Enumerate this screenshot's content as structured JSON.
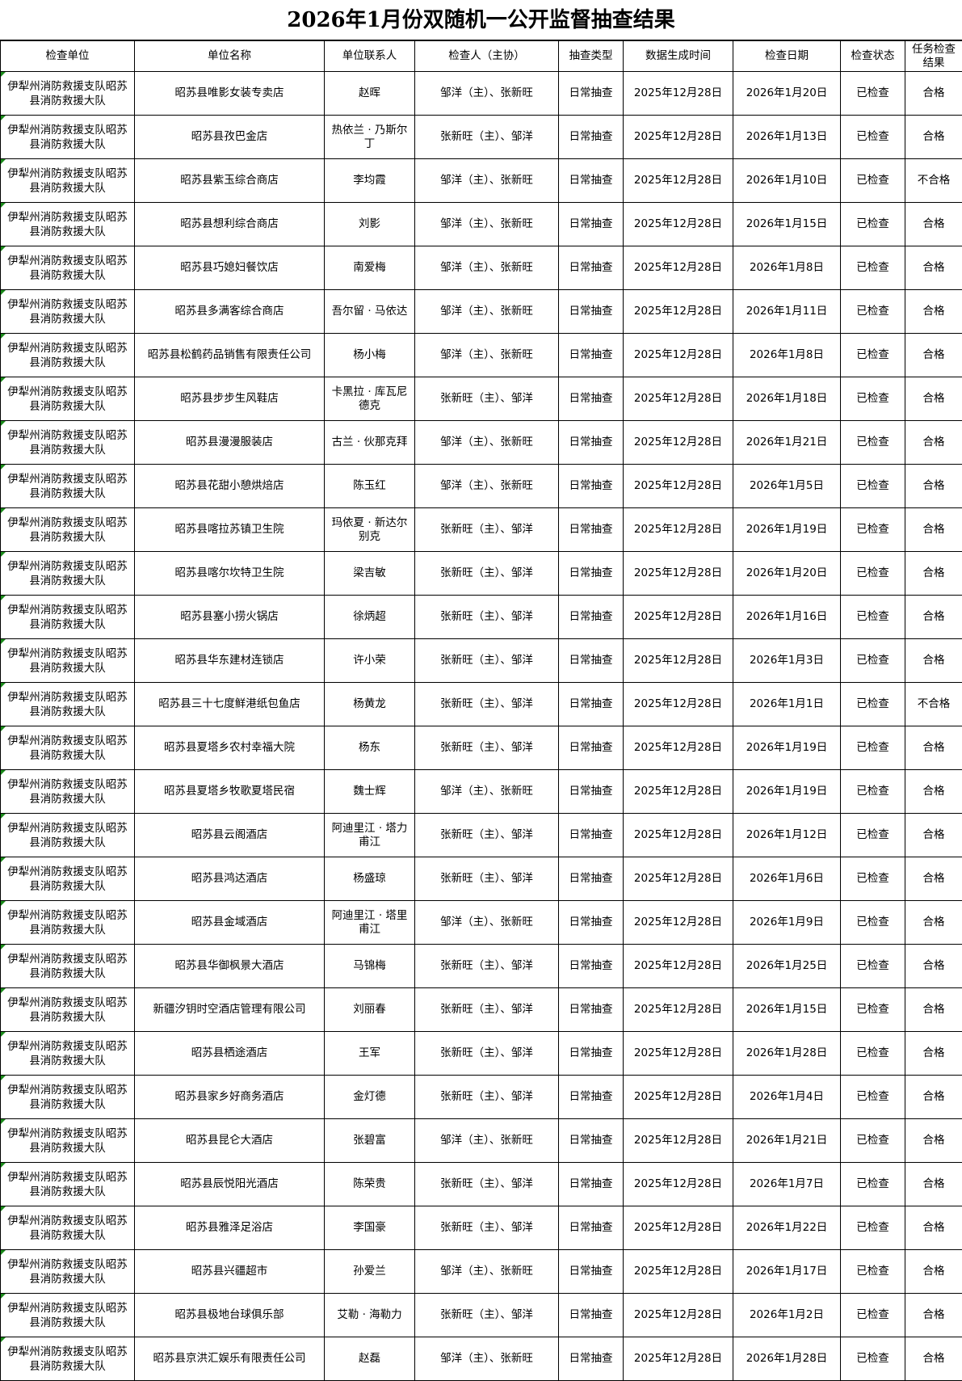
{
  "title": "2026年1月份双随机一公开监督抽查结果",
  "columns": [
    "检查单位",
    "单位名称",
    "单位联系人",
    "检查人（主协）",
    "抽查类型",
    "数据生成时间",
    "检查日期",
    "检查状态",
    "任务检查结果"
  ],
  "indicator_color": "#1a8a1a",
  "rows": [
    [
      "伊犁州消防救援支队昭苏县消防救援大队",
      "昭苏县唯影女装专卖店",
      "赵晖",
      "邹洋（主）、张新旺",
      "日常抽查",
      "2025年12月28日",
      "2026年1月20日",
      "已检查",
      "合格"
    ],
    [
      "伊犁州消防救援支队昭苏县消防救援大队",
      "昭苏县孜巴金店",
      "热依兰 · 乃斯尔丁",
      "张新旺（主）、邹洋",
      "日常抽查",
      "2025年12月28日",
      "2026年1月13日",
      "已检查",
      "合格"
    ],
    [
      "伊犁州消防救援支队昭苏县消防救援大队",
      "昭苏县紫玉综合商店",
      "李均霞",
      "邹洋（主）、张新旺",
      "日常抽查",
      "2025年12月28日",
      "2026年1月10日",
      "已检查",
      "不合格"
    ],
    [
      "伊犁州消防救援支队昭苏县消防救援大队",
      "昭苏县想利综合商店",
      "刘影",
      "邹洋（主）、张新旺",
      "日常抽查",
      "2025年12月28日",
      "2026年1月15日",
      "已检查",
      "合格"
    ],
    [
      "伊犁州消防救援支队昭苏县消防救援大队",
      "昭苏县巧媳妇餐饮店",
      "南爱梅",
      "邹洋（主）、张新旺",
      "日常抽查",
      "2025年12月28日",
      "2026年1月8日",
      "已检查",
      "合格"
    ],
    [
      "伊犁州消防救援支队昭苏县消防救援大队",
      "昭苏县多满客综合商店",
      "吾尔留 · 马依达",
      "邹洋（主）、张新旺",
      "日常抽查",
      "2025年12月28日",
      "2026年1月11日",
      "已检查",
      "合格"
    ],
    [
      "伊犁州消防救援支队昭苏县消防救援大队",
      "昭苏县松鹤药品销售有限责任公司",
      "杨小梅",
      "邹洋（主）、张新旺",
      "日常抽查",
      "2025年12月28日",
      "2026年1月8日",
      "已检查",
      "合格"
    ],
    [
      "伊犁州消防救援支队昭苏县消防救援大队",
      "昭苏县步步生风鞋店",
      "卡黑拉 · 库瓦尼德克",
      "张新旺（主）、邹洋",
      "日常抽查",
      "2025年12月28日",
      "2026年1月18日",
      "已检查",
      "合格"
    ],
    [
      "伊犁州消防救援支队昭苏县消防救援大队",
      "昭苏县漫漫服装店",
      "古兰 · 伙那克拜",
      "邹洋（主）、张新旺",
      "日常抽查",
      "2025年12月28日",
      "2026年1月21日",
      "已检查",
      "合格"
    ],
    [
      "伊犁州消防救援支队昭苏县消防救援大队",
      "昭苏县花甜小憩烘焙店",
      "陈玉红",
      "邹洋（主）、张新旺",
      "日常抽查",
      "2025年12月28日",
      "2026年1月5日",
      "已检查",
      "合格"
    ],
    [
      "伊犁州消防救援支队昭苏县消防救援大队",
      "昭苏县喀拉苏镇卫生院",
      "玛依夏 · 新达尔别克",
      "张新旺（主）、邹洋",
      "日常抽查",
      "2025年12月28日",
      "2026年1月19日",
      "已检查",
      "合格"
    ],
    [
      "伊犁州消防救援支队昭苏县消防救援大队",
      "昭苏县喀尔坎特卫生院",
      "梁吉敏",
      "张新旺（主）、邹洋",
      "日常抽查",
      "2025年12月28日",
      "2026年1月20日",
      "已检查",
      "合格"
    ],
    [
      "伊犁州消防救援支队昭苏县消防救援大队",
      "昭苏县塞小捞火锅店",
      "徐炳超",
      "张新旺（主）、邹洋",
      "日常抽查",
      "2025年12月28日",
      "2026年1月16日",
      "已检查",
      "合格"
    ],
    [
      "伊犁州消防救援支队昭苏县消防救援大队",
      "昭苏县华东建材连锁店",
      "许小荣",
      "张新旺（主）、邹洋",
      "日常抽查",
      "2025年12月28日",
      "2026年1月3日",
      "已检查",
      "合格"
    ],
    [
      "伊犁州消防救援支队昭苏县消防救援大队",
      "昭苏县三十七度鲜港纸包鱼店",
      "杨黄龙",
      "张新旺（主）、邹洋",
      "日常抽查",
      "2025年12月28日",
      "2026年1月1日",
      "已检查",
      "不合格"
    ],
    [
      "伊犁州消防救援支队昭苏县消防救援大队",
      "昭苏县夏塔乡农村幸福大院",
      "杨东",
      "张新旺（主）、邹洋",
      "日常抽查",
      "2025年12月28日",
      "2026年1月19日",
      "已检查",
      "合格"
    ],
    [
      "伊犁州消防救援支队昭苏县消防救援大队",
      "昭苏县夏塔乡牧歌夏塔民宿",
      "魏士辉",
      "邹洋（主）、张新旺",
      "日常抽查",
      "2025年12月28日",
      "2026年1月19日",
      "已检查",
      "合格"
    ],
    [
      "伊犁州消防救援支队昭苏县消防救援大队",
      "昭苏县云阁酒店",
      "阿迪里江 · 塔力甫江",
      "张新旺（主）、邹洋",
      "日常抽查",
      "2025年12月28日",
      "2026年1月12日",
      "已检查",
      "合格"
    ],
    [
      "伊犁州消防救援支队昭苏县消防救援大队",
      "昭苏县鸿达酒店",
      "杨盛琼",
      "张新旺（主）、邹洋",
      "日常抽查",
      "2025年12月28日",
      "2026年1月6日",
      "已检查",
      "合格"
    ],
    [
      "伊犁州消防救援支队昭苏县消防救援大队",
      "昭苏县金域酒店",
      "阿迪里江 · 塔里甫江",
      "邹洋（主）、张新旺",
      "日常抽查",
      "2025年12月28日",
      "2026年1月9日",
      "已检查",
      "合格"
    ],
    [
      "伊犁州消防救援支队昭苏县消防救援大队",
      "昭苏县华御枫景大酒店",
      "马锦梅",
      "张新旺（主）、邹洋",
      "日常抽查",
      "2025年12月28日",
      "2026年1月25日",
      "已检查",
      "合格"
    ],
    [
      "伊犁州消防救援支队昭苏县消防救援大队",
      "新疆汐钥时空酒店管理有限公司",
      "刘丽春",
      "张新旺（主）、邹洋",
      "日常抽查",
      "2025年12月28日",
      "2026年1月15日",
      "已检查",
      "合格"
    ],
    [
      "伊犁州消防救援支队昭苏县消防救援大队",
      "昭苏县栖途酒店",
      "王军",
      "张新旺（主）、邹洋",
      "日常抽查",
      "2025年12月28日",
      "2026年1月28日",
      "已检查",
      "合格"
    ],
    [
      "伊犁州消防救援支队昭苏县消防救援大队",
      "昭苏县家乡好商务酒店",
      "金灯德",
      "张新旺（主）、邹洋",
      "日常抽查",
      "2025年12月28日",
      "2026年1月4日",
      "已检查",
      "合格"
    ],
    [
      "伊犁州消防救援支队昭苏县消防救援大队",
      "昭苏县昆仑大酒店",
      "张碧富",
      "邹洋（主）、张新旺",
      "日常抽查",
      "2025年12月28日",
      "2026年1月21日",
      "已检查",
      "合格"
    ],
    [
      "伊犁州消防救援支队昭苏县消防救援大队",
      "昭苏县辰悦阳光酒店",
      "陈荣贵",
      "张新旺（主）、邹洋",
      "日常抽查",
      "2025年12月28日",
      "2026年1月7日",
      "已检查",
      "合格"
    ],
    [
      "伊犁州消防救援支队昭苏县消防救援大队",
      "昭苏县雅泽足浴店",
      "李国豪",
      "张新旺（主）、邹洋",
      "日常抽查",
      "2025年12月28日",
      "2026年1月22日",
      "已检查",
      "合格"
    ],
    [
      "伊犁州消防救援支队昭苏县消防救援大队",
      "昭苏县兴疆超市",
      "孙爱兰",
      "邹洋（主）、张新旺",
      "日常抽查",
      "2025年12月28日",
      "2026年1月17日",
      "已检查",
      "合格"
    ],
    [
      "伊犁州消防救援支队昭苏县消防救援大队",
      "昭苏县极地台球俱乐部",
      "艾勒 · 海勒力",
      "张新旺（主）、邹洋",
      "日常抽查",
      "2025年12月28日",
      "2026年1月2日",
      "已检查",
      "合格"
    ],
    [
      "伊犁州消防救援支队昭苏县消防救援大队",
      "昭苏县京洪汇娱乐有限责任公司",
      "赵磊",
      "邹洋（主）、张新旺",
      "日常抽查",
      "2025年12月28日",
      "2026年1月28日",
      "已检查",
      "合格"
    ]
  ]
}
